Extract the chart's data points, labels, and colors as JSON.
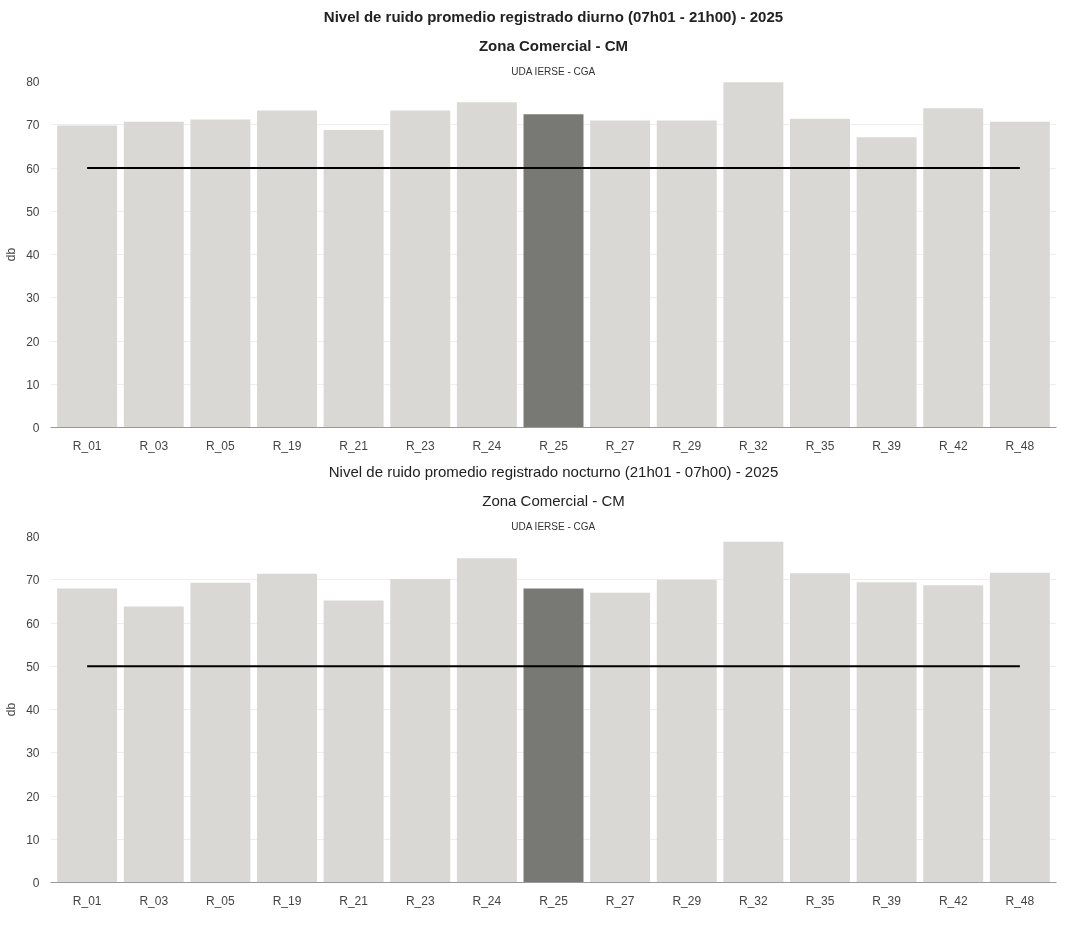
{
  "chart_data": [
    {
      "type": "bar",
      "title": "Nivel de ruido promedio registrado diurno (07h01 - 21h00) - 2025",
      "subtitle": "Zona Comercial - CM",
      "annotations": [
        "UDA IERSE - CGA"
      ],
      "ylabel": "db",
      "categories": [
        "R_01",
        "R_03",
        "R_05",
        "R_19",
        "R_21",
        "R_23",
        "R_24",
        "R_25",
        "R_27",
        "R_29",
        "R_32",
        "R_35",
        "R_39",
        "R_42",
        "R_48"
      ],
      "values": [
        69.8,
        70.7,
        71.2,
        73.3,
        68.8,
        73.3,
        75.2,
        72.4,
        71.0,
        71.0,
        79.8,
        71.4,
        67.1,
        73.8,
        70.7
      ],
      "colors": [
        "#d9d8d5",
        "#d9d8d5",
        "#d9d8d5",
        "#d9d8d5",
        "#d9d8d5",
        "#d9d8d5",
        "#d9d8d5",
        "#787975",
        "#d9d8d5",
        "#d9d8d5",
        "#d9d8d5",
        "#d9d8d5",
        "#d9d8d5",
        "#d9d8d5",
        "#d9d8d5"
      ],
      "ylim": [
        0,
        80
      ],
      "yticks": [
        0,
        10,
        20,
        30,
        40,
        50,
        60,
        70,
        80
      ],
      "grid": "y",
      "ref_lines": [
        {
          "axis": "y",
          "value": 60,
          "color": "#000000"
        }
      ]
    },
    {
      "type": "bar",
      "title": "Nivel de ruido promedio registrado nocturno (21h01 - 07h00) - 2025",
      "subtitle": "Zona Comercial - CM",
      "annotations": [
        "UDA IERSE - CGA"
      ],
      "ylabel": "db",
      "categories": [
        "R_01",
        "R_03",
        "R_05",
        "R_19",
        "R_21",
        "R_23",
        "R_24",
        "R_25",
        "R_27",
        "R_29",
        "R_32",
        "R_35",
        "R_39",
        "R_42",
        "R_48"
      ],
      "values": [
        68.0,
        63.8,
        69.3,
        71.4,
        65.2,
        70.2,
        75.0,
        68.0,
        67.0,
        70.0,
        78.8,
        71.5,
        69.4,
        68.7,
        71.6
      ],
      "colors": [
        "#d9d8d5",
        "#d9d8d5",
        "#d9d8d5",
        "#d9d8d5",
        "#d9d8d5",
        "#d9d8d5",
        "#d9d8d5",
        "#787975",
        "#d9d8d5",
        "#d9d8d5",
        "#d9d8d5",
        "#d9d8d5",
        "#d9d8d5",
        "#d9d8d5",
        "#d9d8d5"
      ],
      "ylim": [
        0,
        80
      ],
      "yticks": [
        0,
        10,
        20,
        30,
        40,
        50,
        60,
        70,
        80
      ],
      "grid": "y",
      "ref_lines": [
        {
          "axis": "y",
          "value": 50,
          "color": "#000000"
        }
      ]
    }
  ]
}
